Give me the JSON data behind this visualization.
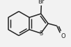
{
  "bg_color": "#f2f2f2",
  "line_color": "#222222",
  "line_width": 1.1,
  "font_size": 6.0,
  "figsize": [
    1.02,
    0.68
  ],
  "dpi": 100,
  "xlim": [
    0.0,
    1.02
  ],
  "ylim": [
    0.0,
    0.68
  ]
}
